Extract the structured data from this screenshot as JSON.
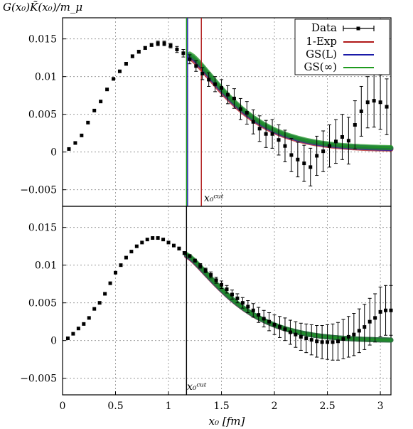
{
  "chart_data": [
    {
      "type": "scatter",
      "title": "",
      "ylabel": "G(x₀)K̃(x₀)/m_μ",
      "xlim": [
        0,
        3.1
      ],
      "ylim": [
        -0.0072,
        0.0178
      ],
      "yticks": [
        -0.005,
        0,
        0.005,
        0.01,
        0.015
      ],
      "yticklabels": [
        "−0.005",
        "0",
        "0.005",
        "0.01",
        "0.015"
      ],
      "grid": true,
      "legend_position": "top-right",
      "legend": [
        {
          "label": "Data",
          "color": "#000000",
          "kind": "errorbar"
        },
        {
          "label": "1-Exp",
          "color": "#b01818",
          "kind": "line"
        },
        {
          "label": "GS(L)",
          "color": "#1a1aa8",
          "kind": "line"
        },
        {
          "label": "GS(∞)",
          "color": "#1e9a1e",
          "kind": "line"
        }
      ],
      "cut_lines": [
        {
          "x": 1.17,
          "color": "#1e9a1e"
        },
        {
          "x": 1.18,
          "color": "#1a1aa8"
        },
        {
          "x": 1.31,
          "color": "#b01818"
        }
      ],
      "cut_label": "x₀ᶜᵘᵗ",
      "series": [
        {
          "name": "Data",
          "x": [
            0.06,
            0.12,
            0.18,
            0.24,
            0.3,
            0.36,
            0.42,
            0.48,
            0.54,
            0.6,
            0.66,
            0.72,
            0.78,
            0.84,
            0.9,
            0.96,
            1.02,
            1.08,
            1.14,
            1.2,
            1.26,
            1.32,
            1.38,
            1.44,
            1.5,
            1.56,
            1.62,
            1.68,
            1.74,
            1.8,
            1.86,
            1.92,
            1.98,
            2.04,
            2.1,
            2.16,
            2.22,
            2.28,
            2.34,
            2.4,
            2.46,
            2.52,
            2.58,
            2.64,
            2.7,
            2.76,
            2.82,
            2.88,
            2.94,
            3.0,
            3.06
          ],
          "y": [
            0.0004,
            0.0012,
            0.0022,
            0.0039,
            0.0055,
            0.0067,
            0.0083,
            0.0097,
            0.0107,
            0.0117,
            0.0127,
            0.0133,
            0.0138,
            0.0142,
            0.0144,
            0.0144,
            0.0141,
            0.0136,
            0.0131,
            0.0123,
            0.0114,
            0.0104,
            0.0096,
            0.009,
            0.0085,
            0.0076,
            0.0071,
            0.0057,
            0.0052,
            0.004,
            0.0031,
            0.0024,
            0.0024,
            0.0016,
            0.0008,
            -0.0004,
            -0.001,
            -0.0015,
            -0.002,
            -0.0005,
            0.0001,
            0.0008,
            0.0014,
            0.002,
            0.0015,
            0.0036,
            0.0054,
            0.0066,
            0.0068,
            0.0066,
            0.006
          ],
          "yerr": [
            0.0001,
            0.0001,
            0.0001,
            0.0001,
            0.0001,
            0.0001,
            0.0001,
            0.0001,
            0.0001,
            0.0002,
            0.0002,
            0.0002,
            0.0002,
            0.0002,
            0.0003,
            0.0003,
            0.0003,
            0.0004,
            0.0005,
            0.0006,
            0.0007,
            0.0008,
            0.0009,
            0.001,
            0.0011,
            0.0012,
            0.0013,
            0.0014,
            0.0015,
            0.0016,
            0.0017,
            0.0018,
            0.0019,
            0.002,
            0.0021,
            0.0022,
            0.0023,
            0.0024,
            0.0025,
            0.0026,
            0.0027,
            0.0028,
            0.0029,
            0.003,
            0.0031,
            0.0032,
            0.0033,
            0.0034,
            0.0035,
            0.0036,
            0.0037
          ]
        },
        {
          "name": "1-Exp",
          "x_start": 1.2,
          "x_end": 3.1,
          "y_start": 0.0125,
          "y_end": 0.0003
        },
        {
          "name": "GS(L)",
          "x_start": 1.2,
          "x_end": 3.1,
          "y_start": 0.0128,
          "y_end": 0.0004
        },
        {
          "name": "GS(∞)",
          "x_start": 1.2,
          "x_end": 3.1,
          "y_start": 0.013,
          "y_end": 0.0005
        }
      ]
    },
    {
      "type": "scatter",
      "title": "",
      "xlabel": "x₀ [fm]",
      "xlim": [
        0,
        3.1
      ],
      "ylim": [
        -0.0072,
        0.0178
      ],
      "xticks": [
        0,
        0.5,
        1,
        1.5,
        2,
        2.5,
        3
      ],
      "xticklabels": [
        "0",
        "0.5",
        "1",
        "1.5",
        "2",
        "2.5",
        "3"
      ],
      "yticks": [
        -0.005,
        0,
        0.005,
        0.01,
        0.015
      ],
      "yticklabels": [
        "−0.005",
        "0",
        "0.005",
        "0.01",
        "0.015"
      ],
      "grid": true,
      "cut_lines": [
        {
          "x": 1.17,
          "color": "#000000"
        }
      ],
      "cut_label": "x₀ᶜᵘᵗ",
      "series": [
        {
          "name": "Data",
          "x": [
            0.05,
            0.1,
            0.15,
            0.2,
            0.25,
            0.3,
            0.35,
            0.4,
            0.45,
            0.5,
            0.55,
            0.6,
            0.65,
            0.7,
            0.75,
            0.8,
            0.85,
            0.9,
            0.95,
            1.0,
            1.05,
            1.1,
            1.15,
            1.2,
            1.25,
            1.3,
            1.35,
            1.4,
            1.45,
            1.5,
            1.55,
            1.6,
            1.65,
            1.7,
            1.75,
            1.8,
            1.85,
            1.9,
            1.95,
            2.0,
            2.05,
            2.1,
            2.15,
            2.2,
            2.25,
            2.3,
            2.35,
            2.4,
            2.45,
            2.5,
            2.55,
            2.6,
            2.65,
            2.7,
            2.75,
            2.8,
            2.85,
            2.9,
            2.95,
            3.0,
            3.05,
            3.1
          ],
          "y": [
            0.0003,
            0.0009,
            0.0016,
            0.0022,
            0.003,
            0.0042,
            0.005,
            0.0062,
            0.0076,
            0.009,
            0.01,
            0.011,
            0.0118,
            0.0125,
            0.013,
            0.0134,
            0.0136,
            0.0136,
            0.0134,
            0.013,
            0.0126,
            0.0122,
            0.0116,
            0.0112,
            0.0106,
            0.0099,
            0.0093,
            0.0087,
            0.008,
            0.0074,
            0.0068,
            0.0061,
            0.0056,
            0.005,
            0.0045,
            0.004,
            0.0034,
            0.0029,
            0.0025,
            0.0021,
            0.0018,
            0.0015,
            0.0011,
            0.0008,
            0.0005,
            0.0003,
            0.0001,
            -0.0001,
            -0.0002,
            -0.0002,
            -0.0002,
            -0.0001,
            0.0002,
            0.0005,
            0.0008,
            0.0013,
            0.0018,
            0.0025,
            0.003,
            0.0038,
            0.004,
            0.004
          ],
          "yerr": [
            5e-05,
            5e-05,
            5e-05,
            5e-05,
            5e-05,
            5e-05,
            5e-05,
            5e-05,
            5e-05,
            8e-05,
            8e-05,
            8e-05,
            0.0001,
            0.0001,
            0.0001,
            0.0001,
            0.0001,
            0.0001,
            0.0001,
            0.0001,
            0.0001,
            0.0002,
            0.0002,
            0.0002,
            0.0002,
            0.0003,
            0.0003,
            0.0004,
            0.0004,
            0.0005,
            0.0005,
            0.0006,
            0.0006,
            0.0007,
            0.0008,
            0.0009,
            0.001,
            0.0011,
            0.0012,
            0.0013,
            0.0014,
            0.0015,
            0.0016,
            0.0017,
            0.0018,
            0.0019,
            0.002,
            0.0021,
            0.0022,
            0.0023,
            0.0024,
            0.0025,
            0.0026,
            0.0027,
            0.0028,
            0.0029,
            0.003,
            0.0031,
            0.0032,
            0.0033,
            0.0033,
            0.0033
          ]
        },
        {
          "name": "1-Exp",
          "x_start": 1.17,
          "x_end": 3.1,
          "y_start": 0.0112,
          "y_end": 0.0
        },
        {
          "name": "GS(L)",
          "x_start": 1.17,
          "x_end": 3.1,
          "y_start": 0.0113,
          "y_end": 0.0
        },
        {
          "name": "GS(∞)",
          "x_start": 1.17,
          "x_end": 3.1,
          "y_start": 0.0114,
          "y_end": 0.0
        }
      ]
    }
  ]
}
